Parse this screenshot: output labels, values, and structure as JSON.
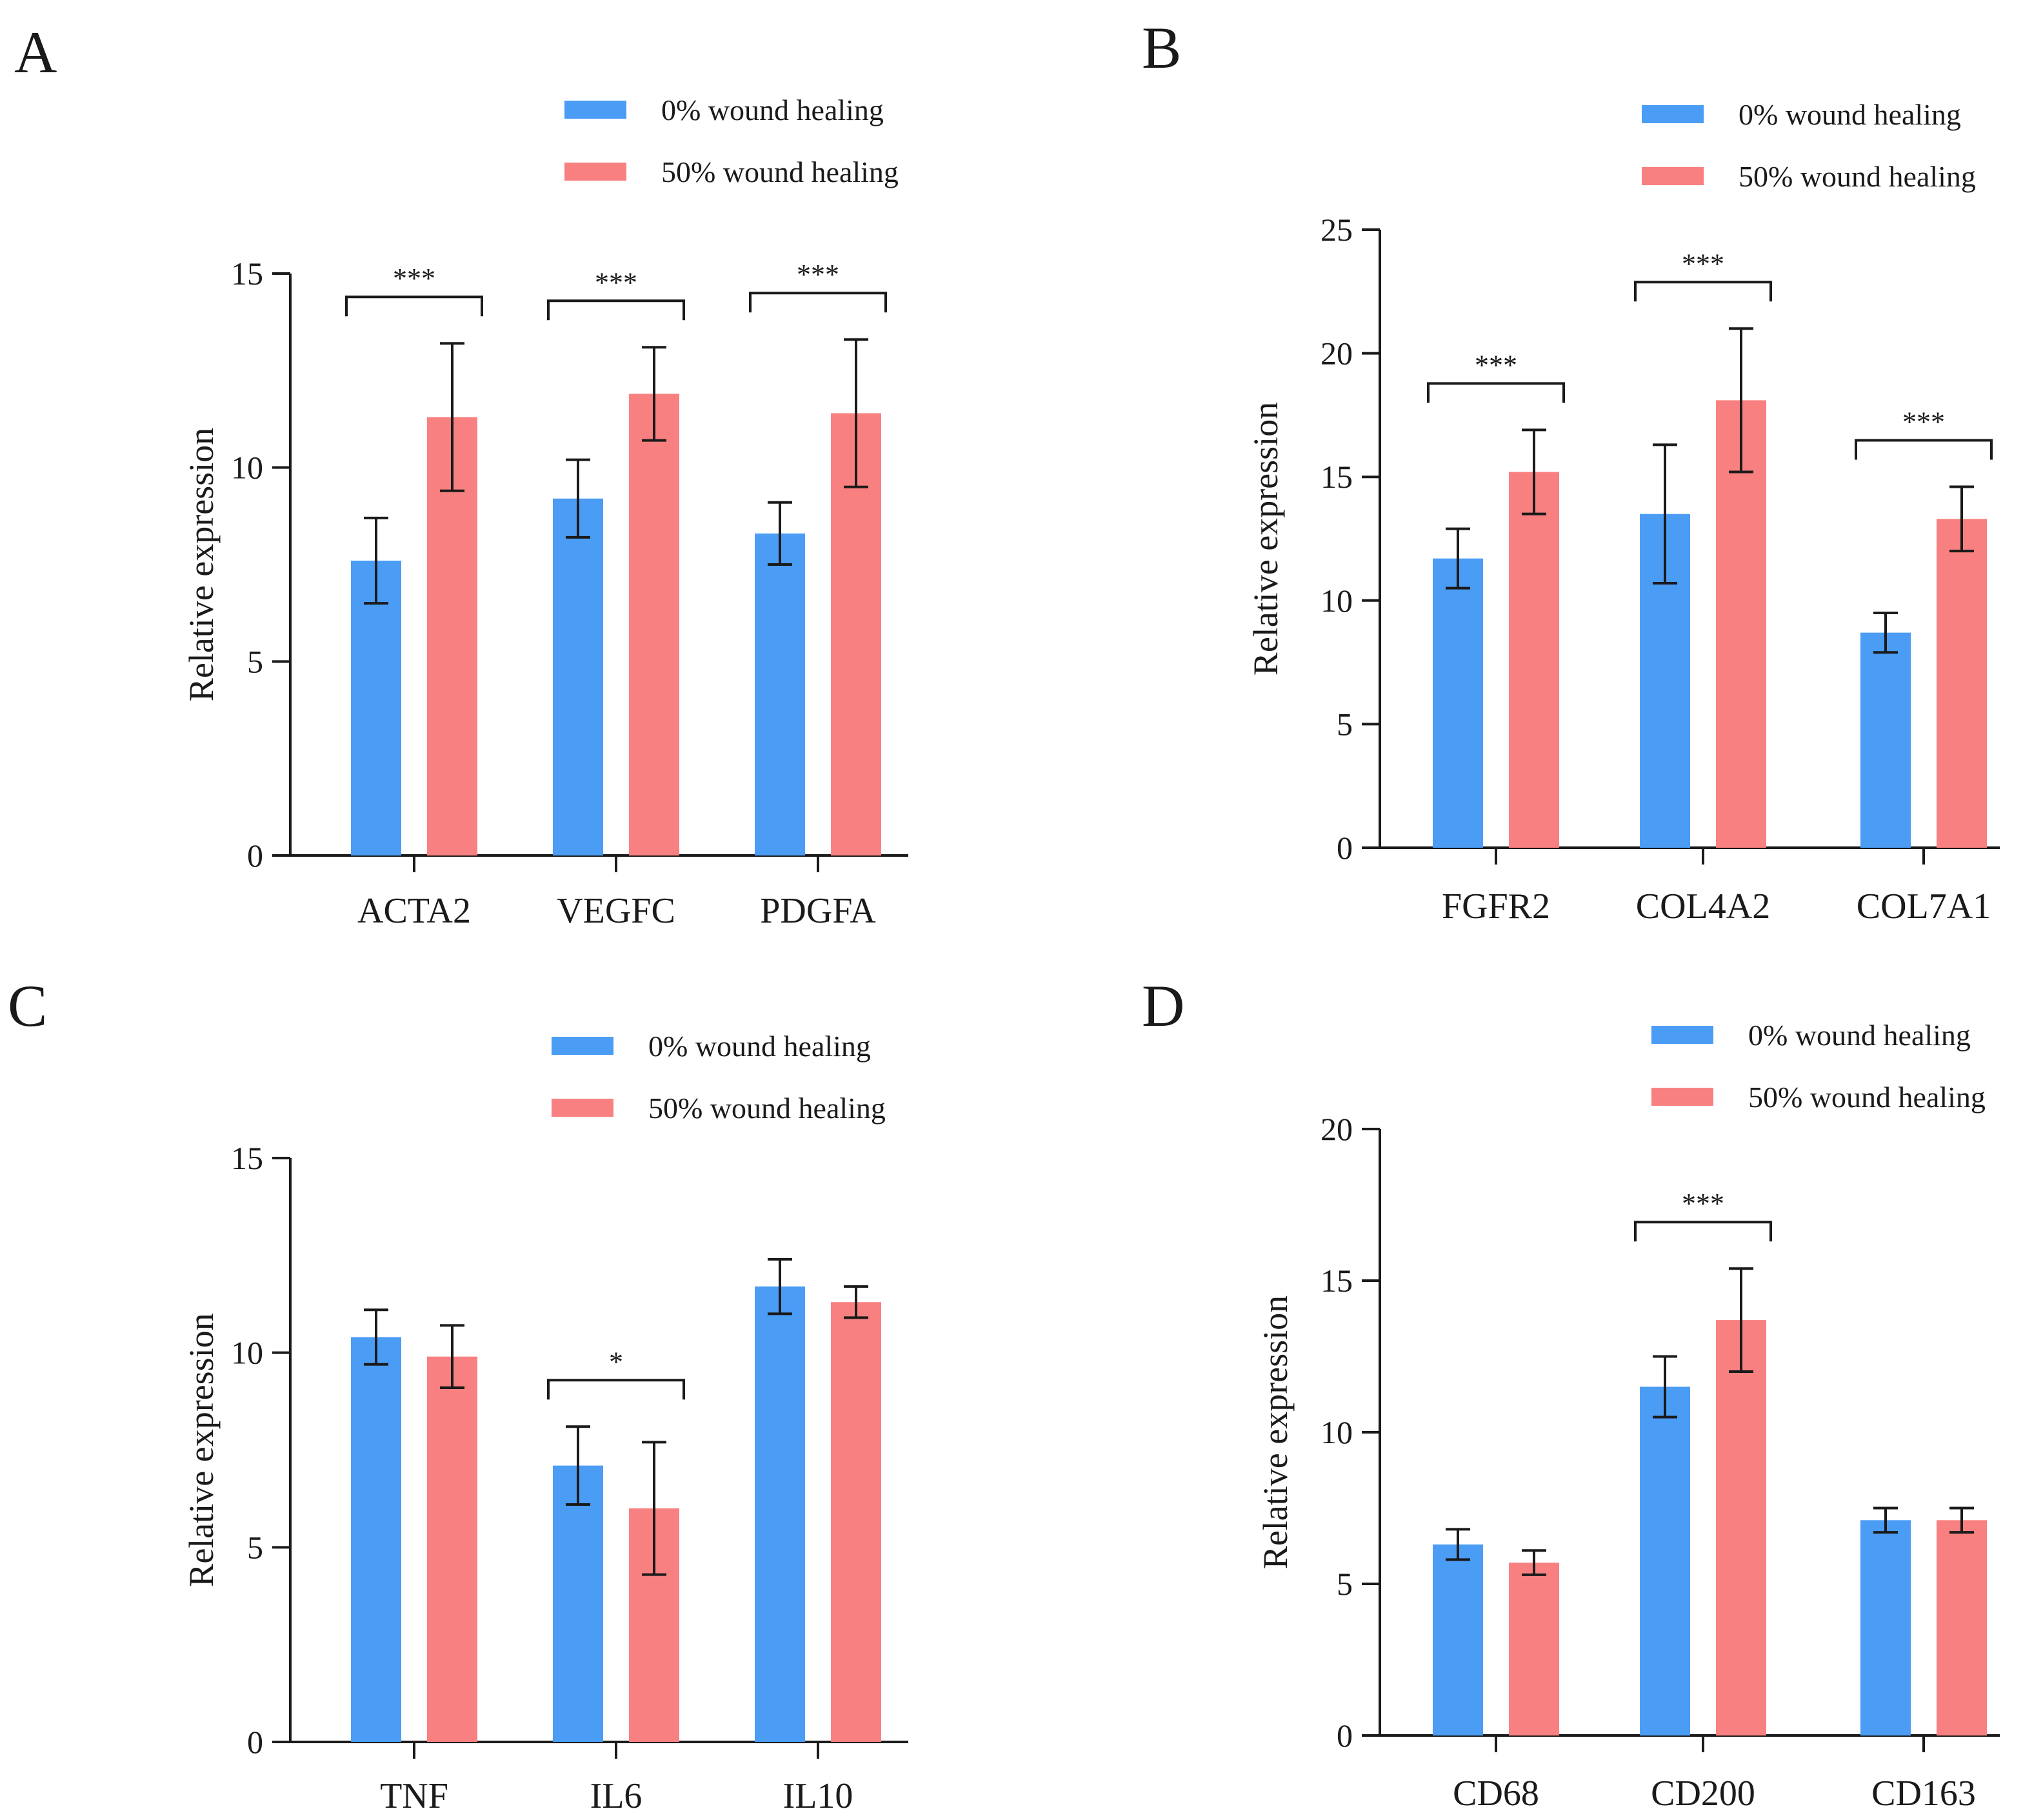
{
  "figure": {
    "colors": {
      "series_0": "#4a9cf5",
      "series_1": "#f98080",
      "ink": "#1a1a1a"
    }
  },
  "chart_data": [
    {
      "panel": "A",
      "type": "bar",
      "ylabel": "Relative expression",
      "ylim": [
        0,
        15
      ],
      "yticks": [
        0,
        5,
        10,
        15
      ],
      "ytick_labels": [
        "0",
        "5",
        "10",
        "15"
      ],
      "categories": [
        "ACTA2",
        "VEGFC",
        "PDGFA"
      ],
      "series": [
        {
          "name": "0% wound healing",
          "values": [
            7.6,
            9.2,
            8.3
          ],
          "errors": [
            1.1,
            1.0,
            0.8
          ]
        },
        {
          "name": "50% wound healing",
          "values": [
            11.3,
            11.9,
            11.4
          ],
          "errors": [
            1.9,
            1.2,
            1.9
          ]
        }
      ],
      "significance": [
        {
          "category": 0,
          "label": "***"
        },
        {
          "category": 1,
          "label": "***"
        },
        {
          "category": 2,
          "label": "***"
        }
      ]
    },
    {
      "panel": "B",
      "type": "bar",
      "ylabel": "Relative expression",
      "ylim": [
        0,
        25
      ],
      "yticks": [
        0,
        5,
        10,
        15,
        20,
        25
      ],
      "ytick_labels": [
        "0",
        "5",
        "10",
        "15",
        "20",
        "25"
      ],
      "categories": [
        "FGFR2",
        "COL4A2",
        "COL7A1"
      ],
      "series": [
        {
          "name": "0% wound healing",
          "values": [
            11.7,
            13.5,
            8.7
          ],
          "errors": [
            1.2,
            2.8,
            0.8
          ]
        },
        {
          "name": "50% wound healing",
          "values": [
            15.2,
            18.1,
            13.3
          ],
          "errors": [
            1.7,
            2.9,
            1.3
          ]
        }
      ],
      "significance": [
        {
          "category": 0,
          "label": "***"
        },
        {
          "category": 1,
          "label": "***"
        },
        {
          "category": 2,
          "label": "***"
        }
      ]
    },
    {
      "panel": "C",
      "type": "bar",
      "ylabel": "Relative expression",
      "ylim": [
        0,
        15
      ],
      "yticks": [
        0,
        5,
        10,
        15
      ],
      "ytick_labels": [
        "0",
        "5",
        "10",
        "15"
      ],
      "categories": [
        "TNF",
        "IL6",
        "IL10"
      ],
      "series": [
        {
          "name": "0% wound healing",
          "values": [
            10.4,
            7.1,
            11.7
          ],
          "errors": [
            0.7,
            1.0,
            0.7
          ]
        },
        {
          "name": "50% wound healing",
          "values": [
            9.9,
            6.0,
            11.3
          ],
          "errors": [
            0.8,
            1.7,
            0.4
          ]
        }
      ],
      "significance": [
        {
          "category": 1,
          "label": "*"
        }
      ]
    },
    {
      "panel": "D",
      "type": "bar",
      "ylabel": "Relative expression",
      "ylim": [
        0,
        20
      ],
      "yticks": [
        0,
        5,
        10,
        15,
        20
      ],
      "ytick_labels": [
        "0",
        "5",
        "10",
        "15",
        "20"
      ],
      "categories": [
        "CD68",
        "CD200",
        "CD163"
      ],
      "series": [
        {
          "name": "0% wound healing",
          "values": [
            6.3,
            11.5,
            7.1
          ],
          "errors": [
            0.5,
            1.0,
            0.4
          ]
        },
        {
          "name": "50% wound healing",
          "values": [
            5.7,
            13.7,
            7.1
          ],
          "errors": [
            0.4,
            1.7,
            0.4
          ]
        }
      ],
      "significance": [
        {
          "category": 1,
          "label": "***"
        }
      ]
    }
  ]
}
